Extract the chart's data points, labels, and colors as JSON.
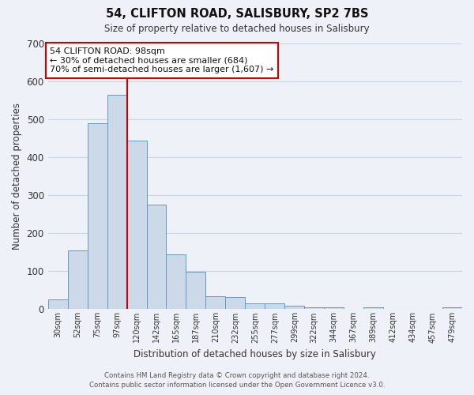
{
  "title": "54, CLIFTON ROAD, SALISBURY, SP2 7BS",
  "subtitle": "Size of property relative to detached houses in Salisbury",
  "xlabel": "Distribution of detached houses by size in Salisbury",
  "ylabel": "Number of detached properties",
  "bar_labels": [
    "30sqm",
    "52sqm",
    "75sqm",
    "97sqm",
    "120sqm",
    "142sqm",
    "165sqm",
    "187sqm",
    "210sqm",
    "232sqm",
    "255sqm",
    "277sqm",
    "299sqm",
    "322sqm",
    "344sqm",
    "367sqm",
    "389sqm",
    "412sqm",
    "434sqm",
    "457sqm",
    "479sqm"
  ],
  "bar_heights": [
    25,
    155,
    490,
    565,
    445,
    275,
    145,
    98,
    35,
    33,
    15,
    15,
    10,
    5,
    5,
    0,
    5,
    0,
    0,
    0,
    5
  ],
  "bar_color": "#ccd9e8",
  "bar_edge_color": "#6699bb",
  "vline_x_index": 4,
  "annotation_text_line1": "54 CLIFTON ROAD: 98sqm",
  "annotation_text_line2": "← 30% of detached houses are smaller (684)",
  "annotation_text_line3": "70% of semi-detached houses are larger (1,607) →",
  "annotation_box_facecolor": "#ffffff",
  "annotation_box_edgecolor": "#cc0000",
  "vline_color": "#cc0000",
  "grid_color": "#c5d5e5",
  "background_color": "#eef2f8",
  "ylim": [
    0,
    700
  ],
  "yticks": [
    0,
    100,
    200,
    300,
    400,
    500,
    600,
    700
  ],
  "footer_line1": "Contains HM Land Registry data © Crown copyright and database right 2024.",
  "footer_line2": "Contains public sector information licensed under the Open Government Licence v3.0."
}
